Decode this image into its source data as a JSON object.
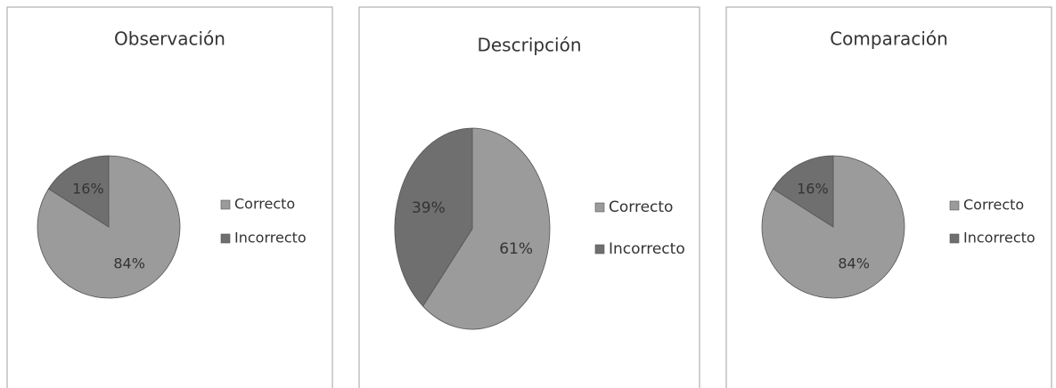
{
  "chart_data": [
    {
      "type": "pie",
      "title": "Observación",
      "categories": [
        "Correcto",
        "Incorrecto"
      ],
      "values": [
        84,
        16
      ],
      "value_labels": [
        "84%",
        "16%"
      ],
      "colors": [
        "#9b9b9b",
        "#6f6f6f"
      ],
      "legend": "right"
    },
    {
      "type": "pie",
      "title": "Descripción",
      "categories": [
        "Correcto",
        "Incorrecto"
      ],
      "values": [
        61,
        39
      ],
      "value_labels": [
        "61%",
        "39%"
      ],
      "colors": [
        "#9b9b9b",
        "#6f6f6f"
      ],
      "legend": "right"
    },
    {
      "type": "pie",
      "title": "Comparación",
      "categories": [
        "Correcto",
        "Incorrecto"
      ],
      "values": [
        84,
        16
      ],
      "value_labels": [
        "84%",
        "16%"
      ],
      "colors": [
        "#9b9b9b",
        "#6f6f6f"
      ],
      "legend": "right"
    }
  ]
}
